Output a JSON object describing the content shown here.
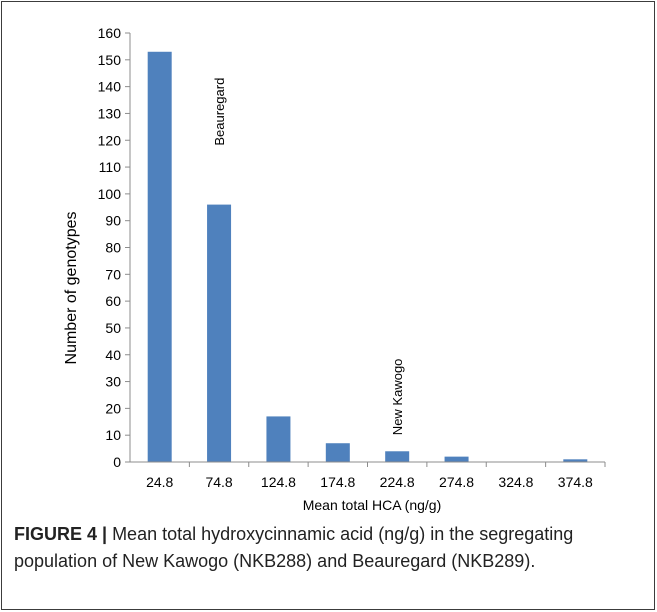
{
  "chart_data": {
    "type": "bar",
    "categories": [
      "24.8",
      "74.8",
      "124.8",
      "174.8",
      "224.8",
      "274.8",
      "324.8",
      "374.8"
    ],
    "values": [
      153,
      96,
      17,
      7,
      4,
      2,
      0,
      1
    ],
    "xlabel": "Mean total HCA (ng/g)",
    "ylabel": "Number of genotypes",
    "ylim": [
      0,
      160
    ],
    "yticks": [
      0,
      10,
      20,
      30,
      40,
      50,
      60,
      70,
      80,
      90,
      100,
      110,
      120,
      130,
      140,
      150,
      160
    ],
    "grid": false,
    "legend": false,
    "bar_color": "#4f81bd",
    "annotations": [
      {
        "text": "Beauregard",
        "category_index": 1,
        "y": 118
      },
      {
        "text": "New Kawogo",
        "category_index": 4,
        "y": 10
      }
    ]
  },
  "caption": {
    "label": "FIGURE 4 |",
    "text": " Mean total hydroxycinnamic acid (ng/g) in the segregating population of New Kawogo (NKB288) and Beauregard (NKB289)."
  }
}
